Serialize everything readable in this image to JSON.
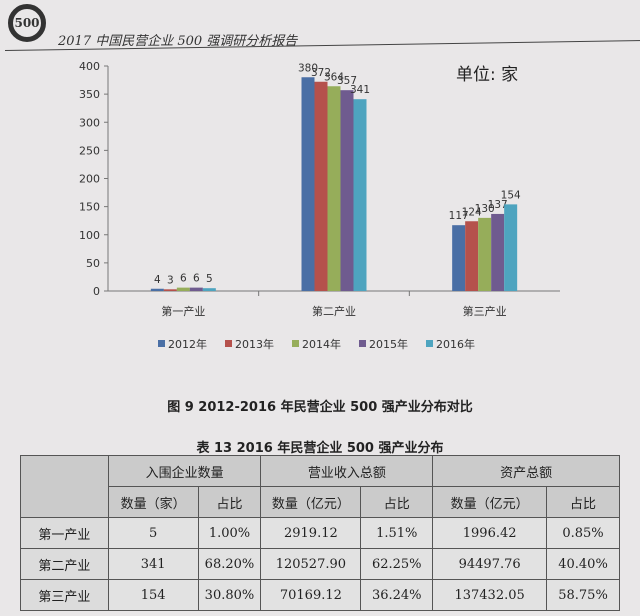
{
  "page_header": {
    "logo_text": "500",
    "title": "2017 中国民营企业 500 强调研分析报告"
  },
  "chart_data": {
    "type": "bar",
    "unit_label": "单位: 家",
    "categories": [
      "第一产业",
      "第二产业",
      "第三产业"
    ],
    "series": [
      {
        "name": "2012年",
        "color": "#4a6fa5",
        "values": [
          4,
          380,
          117
        ]
      },
      {
        "name": "2013年",
        "color": "#b5514c",
        "values": [
          3,
          372,
          124
        ]
      },
      {
        "name": "2014年",
        "color": "#96ad5a",
        "values": [
          6,
          364,
          130
        ]
      },
      {
        "name": "2015年",
        "color": "#6f5b8f",
        "values": [
          6,
          357,
          137
        ]
      },
      {
        "name": "2016年",
        "color": "#4ea4bf",
        "values": [
          5,
          341,
          154
        ]
      }
    ],
    "ylim": [
      0,
      400
    ],
    "yticks": [
      0,
      50,
      100,
      150,
      200,
      250,
      300,
      350,
      400
    ],
    "legend": "bottom",
    "title": "图 9   2012-2016 年民营企业 500 强产业分布对比"
  },
  "table": {
    "title": "表 13   2016 年民营企业 500 强产业分布",
    "groups": [
      "入围企业数量",
      "营业收入总额",
      "资产总额"
    ],
    "subheaders": [
      "数量（家）",
      "占比",
      "数量（亿元）",
      "占比",
      "数量（亿元）",
      "占比"
    ],
    "rows": [
      [
        "第一产业",
        "5",
        "1.00%",
        "2919.12",
        "1.51%",
        "1996.42",
        "0.85%"
      ],
      [
        "第二产业",
        "341",
        "68.20%",
        "120527.90",
        "62.25%",
        "94497.76",
        "40.40%"
      ],
      [
        "第三产业",
        "154",
        "30.80%",
        "70169.12",
        "36.24%",
        "137432.05",
        "58.75%"
      ]
    ]
  }
}
